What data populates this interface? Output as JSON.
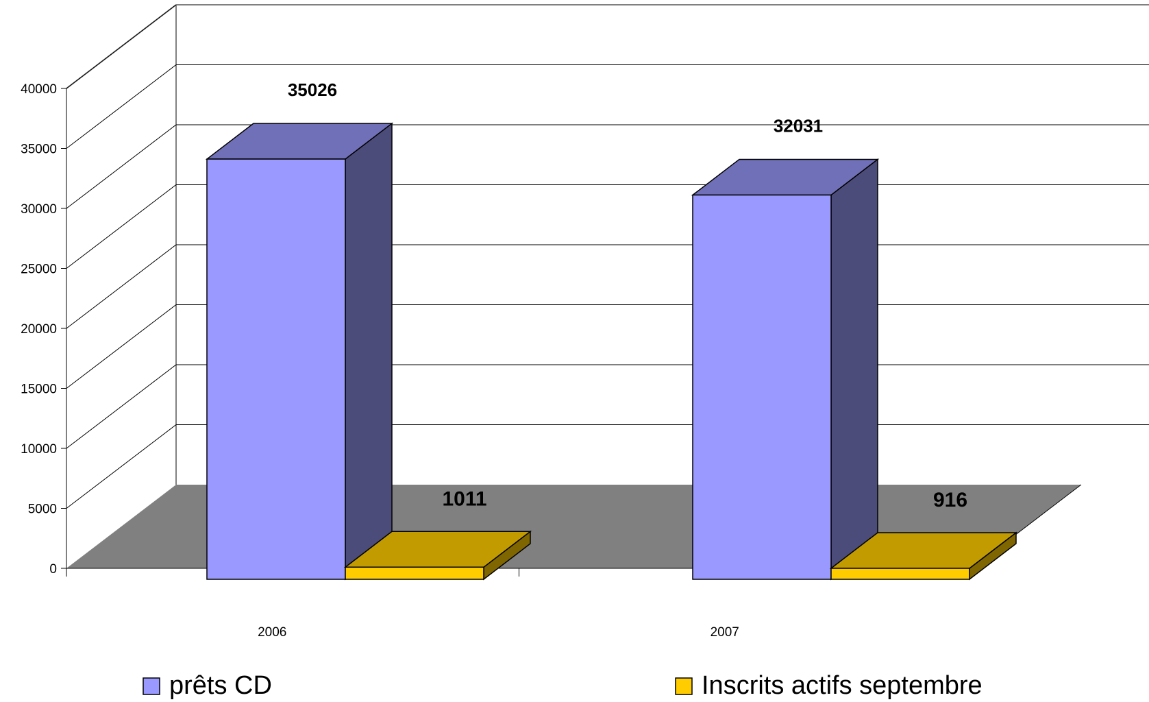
{
  "chart_data": {
    "type": "bar",
    "categories": [
      "2006",
      "2007"
    ],
    "series": [
      {
        "name": "prêts CD",
        "values": [
          35026,
          32031
        ],
        "color": "#9999ff"
      },
      {
        "name": "Inscrits actifs septembre",
        "values": [
          1011,
          916
        ],
        "color": "#ffcc00"
      }
    ],
    "data_labels": [
      [
        "35026",
        "32031"
      ],
      [
        "1011",
        "916"
      ]
    ],
    "ylim": [
      0,
      40000
    ],
    "yticks": [
      0,
      5000,
      10000,
      15000,
      20000,
      25000,
      30000,
      35000,
      40000
    ],
    "grid": true,
    "legend_position": "bottom",
    "colors": {
      "floor": "#808080",
      "wall_line": "#000000",
      "blue_front": "#9999ff",
      "blue_top": "#7070b8",
      "blue_side": "#4c4c7a",
      "yellow_front": "#ffcc00",
      "yellow_top": "#c29b00",
      "yellow_side": "#7f6600"
    }
  }
}
